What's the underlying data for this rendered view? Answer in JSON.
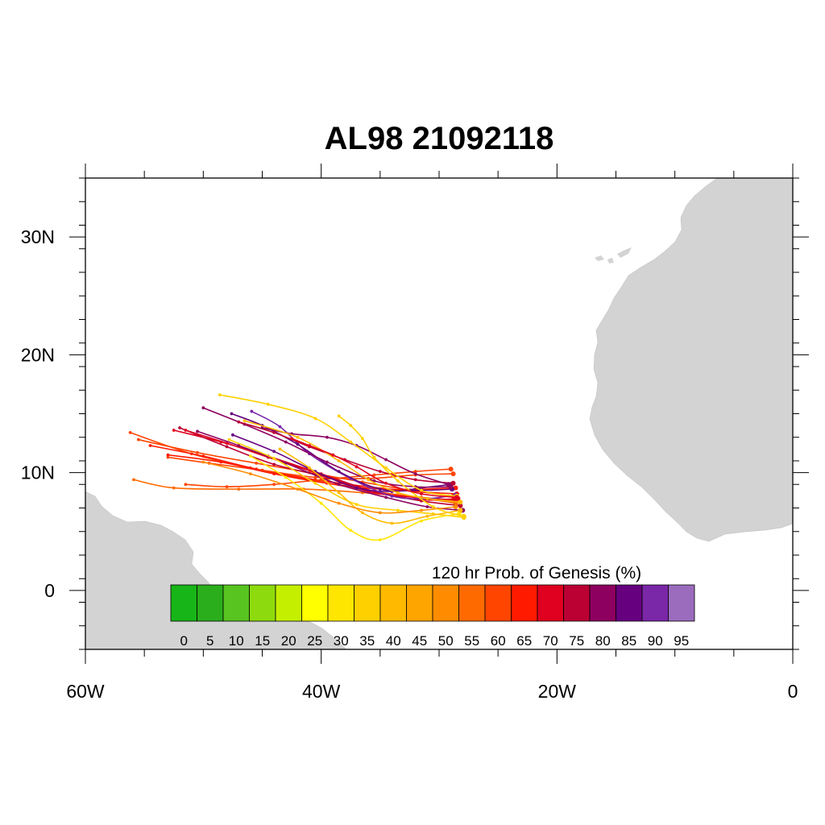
{
  "title": "AL98 21092118",
  "map": {
    "lon_range": [
      -60,
      0
    ],
    "lat_range": [
      -5,
      35
    ],
    "lon_ticks": [
      {
        "value": -60,
        "label": "60W"
      },
      {
        "value": -40,
        "label": "40W"
      },
      {
        "value": -20,
        "label": "20W"
      },
      {
        "value": 0,
        "label": "0"
      }
    ],
    "lat_ticks": [
      {
        "value": 30,
        "label": "30N"
      },
      {
        "value": 20,
        "label": "20N"
      },
      {
        "value": 10,
        "label": "10N"
      },
      {
        "value": 0,
        "label": "0"
      }
    ],
    "land_color": "#d3d3d3",
    "ocean_color": "#ffffff"
  },
  "colorbar": {
    "title": "120 hr Prob. of Genesis (%)",
    "labels": [
      "0",
      "5",
      "10",
      "15",
      "20",
      "25",
      "30",
      "35",
      "40",
      "45",
      "50",
      "55",
      "60",
      "65",
      "70",
      "75",
      "80",
      "85",
      "90",
      "95"
    ],
    "colors": [
      "#17b517",
      "#2aae1c",
      "#58c41f",
      "#8ddb0e",
      "#c4f000",
      "#ffff00",
      "#ffe600",
      "#ffd000",
      "#ffba00",
      "#ffa500",
      "#ff8c00",
      "#ff6a00",
      "#ff4500",
      "#ff1a00",
      "#e0001f",
      "#bb0033",
      "#8e0060",
      "#66007f",
      "#7a27a8",
      "#9b6cbd"
    ]
  },
  "tracks": [
    {
      "color": "#ff4500",
      "points": [
        [
          -28.6,
          7.6
        ],
        [
          -31.5,
          7.9
        ],
        [
          -35.5,
          8.4
        ],
        [
          -40.5,
          9.3
        ],
        [
          -46,
          10.4
        ],
        [
          -51,
          11.6
        ],
        [
          -56.2,
          13.4
        ]
      ]
    },
    {
      "color": "#ff6a00",
      "points": [
        [
          -28.6,
          7.4
        ],
        [
          -32,
          7.9
        ],
        [
          -36.5,
          8.3
        ],
        [
          -41.5,
          8.6
        ],
        [
          -47,
          8.6
        ],
        [
          -52.5,
          8.7
        ],
        [
          -55.9,
          9.4
        ]
      ]
    },
    {
      "color": "#ff4500",
      "points": [
        [
          -28.8,
          8.0
        ],
        [
          -32.5,
          8.5
        ],
        [
          -36.5,
          9.2
        ],
        [
          -41,
          10.0
        ],
        [
          -45.5,
          10.8
        ],
        [
          -50.5,
          11.7
        ],
        [
          -55.5,
          12.8
        ]
      ]
    },
    {
      "color": "#ff1a00",
      "points": [
        [
          -28.5,
          8.2
        ],
        [
          -32,
          8.4
        ],
        [
          -36,
          8.8
        ],
        [
          -40.5,
          9.4
        ],
        [
          -45.5,
          10.3
        ],
        [
          -50,
          11.4
        ],
        [
          -54.5,
          12.3
        ]
      ]
    },
    {
      "color": "#ff4500",
      "points": [
        [
          -29,
          10.3
        ],
        [
          -32,
          10.1
        ],
        [
          -35.5,
          9.8
        ],
        [
          -40,
          9.4
        ],
        [
          -44,
          9.0
        ],
        [
          -48,
          8.8
        ],
        [
          -51.5,
          9.0
        ]
      ]
    },
    {
      "color": "#ff4500",
      "points": [
        [
          -28.8,
          9.9
        ],
        [
          -32,
          9.8
        ],
        [
          -36,
          9.5
        ],
        [
          -40.5,
          9.6
        ],
        [
          -45,
          10.2
        ],
        [
          -49.5,
          10.8
        ],
        [
          -53,
          11.3
        ]
      ]
    },
    {
      "color": "#ff1a00",
      "points": [
        [
          -28.6,
          8.7
        ],
        [
          -31.5,
          8.6
        ],
        [
          -35,
          8.6
        ],
        [
          -39.5,
          9.1
        ],
        [
          -44,
          9.9
        ],
        [
          -48.5,
          10.9
        ],
        [
          -53,
          11.5
        ]
      ]
    },
    {
      "color": "#e0001f",
      "points": [
        [
          -28.4,
          7.8
        ],
        [
          -31.5,
          7.7
        ],
        [
          -35.5,
          8.4
        ],
        [
          -40,
          9.9
        ],
        [
          -44.5,
          11.4
        ],
        [
          -48.5,
          12.6
        ],
        [
          -52.5,
          13.6
        ]
      ]
    },
    {
      "color": "#bb0033",
      "points": [
        [
          -28.2,
          7.2
        ],
        [
          -31.5,
          7.6
        ],
        [
          -35.5,
          8.4
        ],
        [
          -39.5,
          9.6
        ],
        [
          -44,
          10.7
        ],
        [
          -48,
          12.2
        ],
        [
          -52,
          13.8
        ]
      ]
    },
    {
      "color": "#e0001f",
      "points": [
        [
          -28.7,
          7.7
        ],
        [
          -32,
          7.9
        ],
        [
          -36,
          8.4
        ],
        [
          -40.5,
          10.0
        ],
        [
          -44.5,
          11.3
        ],
        [
          -48,
          12.5
        ],
        [
          -51.5,
          13.6
        ]
      ]
    },
    {
      "color": "#8e0060",
      "points": [
        [
          -28,
          6.8
        ],
        [
          -31,
          7.1
        ],
        [
          -34.5,
          7.9
        ],
        [
          -38.5,
          9.0
        ],
        [
          -43,
          10.8
        ],
        [
          -47,
          12.3
        ],
        [
          -50.5,
          13.5
        ]
      ]
    },
    {
      "color": "#66007f",
      "points": [
        [
          -29,
          9.0
        ],
        [
          -31.5,
          8.7
        ],
        [
          -34,
          8.4
        ],
        [
          -37,
          8.7
        ],
        [
          -40.5,
          10.1
        ],
        [
          -44,
          11.8
        ],
        [
          -47.5,
          13.2
        ]
      ]
    },
    {
      "color": "#7a27a8",
      "points": [
        [
          -28.6,
          8.1
        ],
        [
          -31,
          7.8
        ],
        [
          -34,
          8.0
        ],
        [
          -37.5,
          9.5
        ],
        [
          -41,
          11.6
        ],
        [
          -43.5,
          13.9
        ],
        [
          -45.9,
          15.2
        ]
      ]
    },
    {
      "color": "#66007f",
      "points": [
        [
          -28.9,
          8.6
        ],
        [
          -31.5,
          8.5
        ],
        [
          -35,
          8.6
        ],
        [
          -38.5,
          10.1
        ],
        [
          -42,
          12.4
        ],
        [
          -45,
          14.0
        ],
        [
          -47.6,
          15.0
        ]
      ]
    },
    {
      "color": "#8e0060",
      "points": [
        [
          -29,
          8.8
        ],
        [
          -32,
          8.8
        ],
        [
          -35.5,
          9.3
        ],
        [
          -39.5,
          10.9
        ],
        [
          -43,
          12.6
        ],
        [
          -46.5,
          14.1
        ],
        [
          -50,
          15.5
        ]
      ]
    },
    {
      "color": "#bb0033",
      "points": [
        [
          -28.8,
          9.1
        ],
        [
          -32,
          9.4
        ],
        [
          -35,
          10.1
        ],
        [
          -38,
          11.1
        ],
        [
          -41,
          12.2
        ],
        [
          -44,
          13.4
        ],
        [
          -47,
          14.3
        ]
      ]
    },
    {
      "color": "#8e0060",
      "points": [
        [
          -29.2,
          9.0
        ],
        [
          -32,
          9.9
        ],
        [
          -34.5,
          11.1
        ],
        [
          -37,
          12.3
        ],
        [
          -39.5,
          13.0
        ],
        [
          -42.5,
          13.3
        ],
        [
          -45,
          13.8
        ]
      ]
    },
    {
      "color": "#ffd000",
      "points": [
        [
          -28.5,
          8.0
        ],
        [
          -31.5,
          8.5
        ],
        [
          -34.5,
          10.4
        ],
        [
          -37.5,
          12.6
        ],
        [
          -40.5,
          14.6
        ],
        [
          -44.5,
          15.8
        ],
        [
          -48.6,
          16.6
        ]
      ]
    },
    {
      "color": "#ffba00",
      "points": [
        [
          -28.2,
          7.5
        ],
        [
          -31,
          7.8
        ],
        [
          -33.5,
          8.3
        ],
        [
          -36,
          9.4
        ],
        [
          -38.5,
          11.0
        ],
        [
          -42,
          13.0
        ],
        [
          -46.5,
          14.4
        ]
      ]
    },
    {
      "color": "#ffd000",
      "points": [
        [
          -27.9,
          6.2
        ],
        [
          -30.5,
          6.5
        ],
        [
          -33.5,
          6.8
        ],
        [
          -37,
          7.3
        ],
        [
          -40.5,
          9.1
        ],
        [
          -44,
          11.2
        ],
        [
          -47.8,
          12.8
        ]
      ]
    },
    {
      "color": "#ffe600",
      "points": [
        [
          -28.3,
          6.5
        ],
        [
          -31.5,
          5.9
        ],
        [
          -35,
          4.3
        ],
        [
          -37.5,
          5.1
        ],
        [
          -40,
          7.4
        ],
        [
          -43,
          9.6
        ],
        [
          -46,
          11.4
        ]
      ]
    },
    {
      "color": "#ffba00",
      "points": [
        [
          -28.2,
          6.8
        ],
        [
          -31,
          6.3
        ],
        [
          -34,
          5.7
        ],
        [
          -36.5,
          6.6
        ],
        [
          -38.5,
          8.3
        ],
        [
          -41,
          10.4
        ],
        [
          -43.5,
          12.0
        ]
      ]
    },
    {
      "color": "#ff8c00",
      "points": [
        [
          -28.6,
          7.1
        ],
        [
          -31.5,
          6.8
        ],
        [
          -35,
          6.6
        ],
        [
          -38.5,
          7.4
        ],
        [
          -42,
          8.6
        ],
        [
          -46,
          9.9
        ],
        [
          -50,
          10.9
        ]
      ]
    },
    {
      "color": "#ffd000",
      "points": [
        [
          -27.9,
          6.3
        ],
        [
          -30.5,
          7.1
        ],
        [
          -33.5,
          9.3
        ],
        [
          -35.5,
          11.3
        ],
        [
          -36.5,
          12.9
        ],
        [
          -37.5,
          14.0
        ],
        [
          -38.5,
          14.8
        ]
      ]
    },
    {
      "color": "#e0001f",
      "points": [
        [
          -28.5,
          7.9
        ],
        [
          -31.5,
          8.2
        ],
        [
          -34.5,
          9.1
        ],
        [
          -37,
          10.5
        ],
        [
          -39,
          11.5
        ],
        [
          -41,
          12.3
        ],
        [
          -42.5,
          12.9
        ]
      ]
    }
  ]
}
